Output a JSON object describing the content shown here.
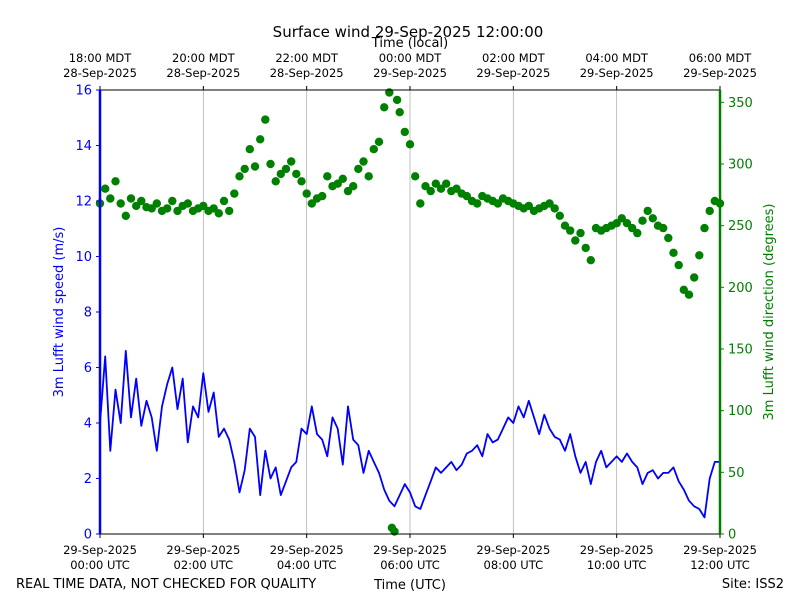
{
  "chart_data": {
    "type": "line",
    "title": "Surface wind 29-Sep-2025 12:00:00",
    "top_xlabel": "Time (local)",
    "xlabel": "Time (UTC)",
    "ylabel_left": "3m Lufft wind speed (m/s)",
    "ylabel_right": "3m Lufft wind direction (degrees)",
    "footer_left": "REAL TIME DATA, NOT CHECKED FOR QUALITY",
    "footer_right": "Site: ISS2",
    "x_range_hours": [
      0,
      12
    ],
    "ylim_left": [
      0,
      16
    ],
    "ylim_right": [
      0,
      360
    ],
    "yticks_left": [
      "0",
      "2",
      "4",
      "6",
      "8",
      "10",
      "12",
      "14",
      "16"
    ],
    "yticks_right": [
      "0",
      "50",
      "100",
      "150",
      "200",
      "250",
      "300",
      "350"
    ],
    "bottom_ticks": [
      {
        "hour": 0,
        "line1": "29-Sep-2025",
        "line2": "00:00 UTC"
      },
      {
        "hour": 2,
        "line1": "29-Sep-2025",
        "line2": "02:00 UTC"
      },
      {
        "hour": 4,
        "line1": "29-Sep-2025",
        "line2": "04:00 UTC"
      },
      {
        "hour": 6,
        "line1": "29-Sep-2025",
        "line2": "06:00 UTC"
      },
      {
        "hour": 8,
        "line1": "29-Sep-2025",
        "line2": "08:00 UTC"
      },
      {
        "hour": 10,
        "line1": "29-Sep-2025",
        "line2": "10:00 UTC"
      },
      {
        "hour": 12,
        "line1": "29-Sep-2025",
        "line2": "12:00 UTC"
      }
    ],
    "top_ticks": [
      {
        "hour": 0,
        "line1": "18:00 MDT",
        "line2": "28-Sep-2025"
      },
      {
        "hour": 2,
        "line1": "20:00 MDT",
        "line2": "28-Sep-2025"
      },
      {
        "hour": 4,
        "line1": "22:00 MDT",
        "line2": "28-Sep-2025"
      },
      {
        "hour": 6,
        "line1": "00:00 MDT",
        "line2": "29-Sep-2025"
      },
      {
        "hour": 8,
        "line1": "02:00 MDT",
        "line2": "29-Sep-2025"
      },
      {
        "hour": 10,
        "line1": "04:00 MDT",
        "line2": "29-Sep-2025"
      },
      {
        "hour": 12,
        "line1": "06:00 MDT",
        "line2": "29-Sep-2025"
      }
    ],
    "series": [
      {
        "name": "3m Lufft wind speed (m/s)",
        "axis": "left",
        "style": "line",
        "color": "#0000ff",
        "x": [
          0,
          0.1,
          0.2,
          0.3,
          0.4,
          0.5,
          0.6,
          0.7,
          0.8,
          0.9,
          1.0,
          1.1,
          1.2,
          1.3,
          1.4,
          1.5,
          1.6,
          1.7,
          1.8,
          1.9,
          2.0,
          2.1,
          2.2,
          2.3,
          2.4,
          2.5,
          2.6,
          2.7,
          2.8,
          2.9,
          3.0,
          3.1,
          3.2,
          3.3,
          3.4,
          3.5,
          3.6,
          3.7,
          3.8,
          3.9,
          4.0,
          4.1,
          4.2,
          4.3,
          4.4,
          4.5,
          4.6,
          4.7,
          4.8,
          4.9,
          5.0,
          5.1,
          5.2,
          5.3,
          5.4,
          5.5,
          5.6,
          5.7,
          5.8,
          5.9,
          6.0,
          6.1,
          6.2,
          6.3,
          6.4,
          6.5,
          6.6,
          6.7,
          6.8,
          6.9,
          7.0,
          7.1,
          7.2,
          7.3,
          7.4,
          7.5,
          7.6,
          7.7,
          7.8,
          7.9,
          8.0,
          8.1,
          8.2,
          8.3,
          8.4,
          8.5,
          8.6,
          8.7,
          8.8,
          8.9,
          9.0,
          9.1,
          9.2,
          9.3,
          9.4,
          9.5,
          9.6,
          9.7,
          9.8,
          9.9,
          10.0,
          10.1,
          10.2,
          10.3,
          10.4,
          10.5,
          10.6,
          10.7,
          10.8,
          10.9,
          11.0,
          11.1,
          11.2,
          11.3,
          11.4,
          11.5,
          11.6,
          11.7,
          11.8,
          11.9,
          12.0
        ],
        "values": [
          4.0,
          6.4,
          3.0,
          5.2,
          4.0,
          6.6,
          4.2,
          5.6,
          3.9,
          4.8,
          4.2,
          3.0,
          4.6,
          5.4,
          6.0,
          4.5,
          5.6,
          3.3,
          4.6,
          4.2,
          5.8,
          4.4,
          5.1,
          3.5,
          3.8,
          3.4,
          2.6,
          1.5,
          2.3,
          3.8,
          3.5,
          1.4,
          3.0,
          2.0,
          2.4,
          1.4,
          1.9,
          2.4,
          2.6,
          3.8,
          3.6,
          4.6,
          3.6,
          3.4,
          2.8,
          4.2,
          3.8,
          2.5,
          4.6,
          3.4,
          3.2,
          2.2,
          3.0,
          2.6,
          2.2,
          1.6,
          1.2,
          1.0,
          1.4,
          1.8,
          1.5,
          1.0,
          0.9,
          1.4,
          1.9,
          2.4,
          2.2,
          2.4,
          2.6,
          2.3,
          2.5,
          2.9,
          3.0,
          3.2,
          2.8,
          3.6,
          3.3,
          3.4,
          3.8,
          4.2,
          4.0,
          4.6,
          4.2,
          4.8,
          4.2,
          3.6,
          4.3,
          3.8,
          3.5,
          3.4,
          3.0,
          3.6,
          2.8,
          2.2,
          2.6,
          1.8,
          2.6,
          3.0,
          2.4,
          2.6,
          2.8,
          2.6,
          2.9,
          2.6,
          2.4,
          1.8,
          2.2,
          2.3,
          2.0,
          2.2,
          2.2,
          2.4,
          1.9,
          1.6,
          1.2,
          1.0,
          0.9,
          0.6,
          2.0,
          2.6,
          2.6
        ]
      },
      {
        "name": "3m Lufft wind direction (degrees)",
        "axis": "right",
        "style": "markers",
        "color": "#008000",
        "x": [
          0,
          0.1,
          0.2,
          0.3,
          0.4,
          0.5,
          0.6,
          0.7,
          0.8,
          0.9,
          1.0,
          1.1,
          1.2,
          1.3,
          1.4,
          1.5,
          1.6,
          1.7,
          1.8,
          1.9,
          2.0,
          2.1,
          2.2,
          2.3,
          2.4,
          2.5,
          2.6,
          2.7,
          2.8,
          2.9,
          3.0,
          3.1,
          3.2,
          3.3,
          3.4,
          3.5,
          3.6,
          3.7,
          3.8,
          3.9,
          4.0,
          4.1,
          4.2,
          4.3,
          4.4,
          4.5,
          4.6,
          4.7,
          4.8,
          4.9,
          5.0,
          5.1,
          5.2,
          5.3,
          5.4,
          5.5,
          5.6,
          5.65,
          5.7,
          5.75,
          5.8,
          5.9,
          6.0,
          6.1,
          6.2,
          6.3,
          6.4,
          6.5,
          6.6,
          6.7,
          6.8,
          6.9,
          7.0,
          7.1,
          7.2,
          7.3,
          7.4,
          7.5,
          7.6,
          7.7,
          7.8,
          7.9,
          8.0,
          8.1,
          8.2,
          8.3,
          8.4,
          8.5,
          8.6,
          8.7,
          8.8,
          8.9,
          9.0,
          9.1,
          9.2,
          9.3,
          9.4,
          9.5,
          9.6,
          9.7,
          9.8,
          9.9,
          10.0,
          10.1,
          10.2,
          10.3,
          10.4,
          10.5,
          10.6,
          10.7,
          10.8,
          10.9,
          11.0,
          11.1,
          11.2,
          11.3,
          11.4,
          11.5,
          11.6,
          11.7,
          11.8,
          11.9,
          12.0
        ],
        "values": [
          268,
          280,
          272,
          286,
          268,
          258,
          272,
          266,
          270,
          265,
          264,
          268,
          262,
          264,
          270,
          262,
          266,
          268,
          262,
          264,
          266,
          262,
          264,
          260,
          270,
          262,
          276,
          290,
          296,
          312,
          298,
          320,
          336,
          300,
          286,
          292,
          296,
          302,
          292,
          286,
          276,
          268,
          272,
          274,
          290,
          282,
          284,
          288,
          278,
          282,
          296,
          302,
          290,
          312,
          318,
          346,
          358,
          5,
          2,
          352,
          342,
          326,
          316,
          290,
          268,
          282,
          278,
          284,
          280,
          284,
          278,
          280,
          276,
          274,
          270,
          268,
          274,
          272,
          270,
          268,
          272,
          270,
          268,
          266,
          264,
          266,
          262,
          264,
          266,
          268,
          264,
          258,
          250,
          246,
          238,
          244,
          232,
          222,
          248,
          246,
          248,
          250,
          252,
          256,
          252,
          248,
          244,
          254,
          262,
          256,
          250,
          248,
          240,
          228,
          218,
          198,
          194,
          208,
          226,
          248,
          262,
          270,
          268
        ]
      }
    ]
  }
}
